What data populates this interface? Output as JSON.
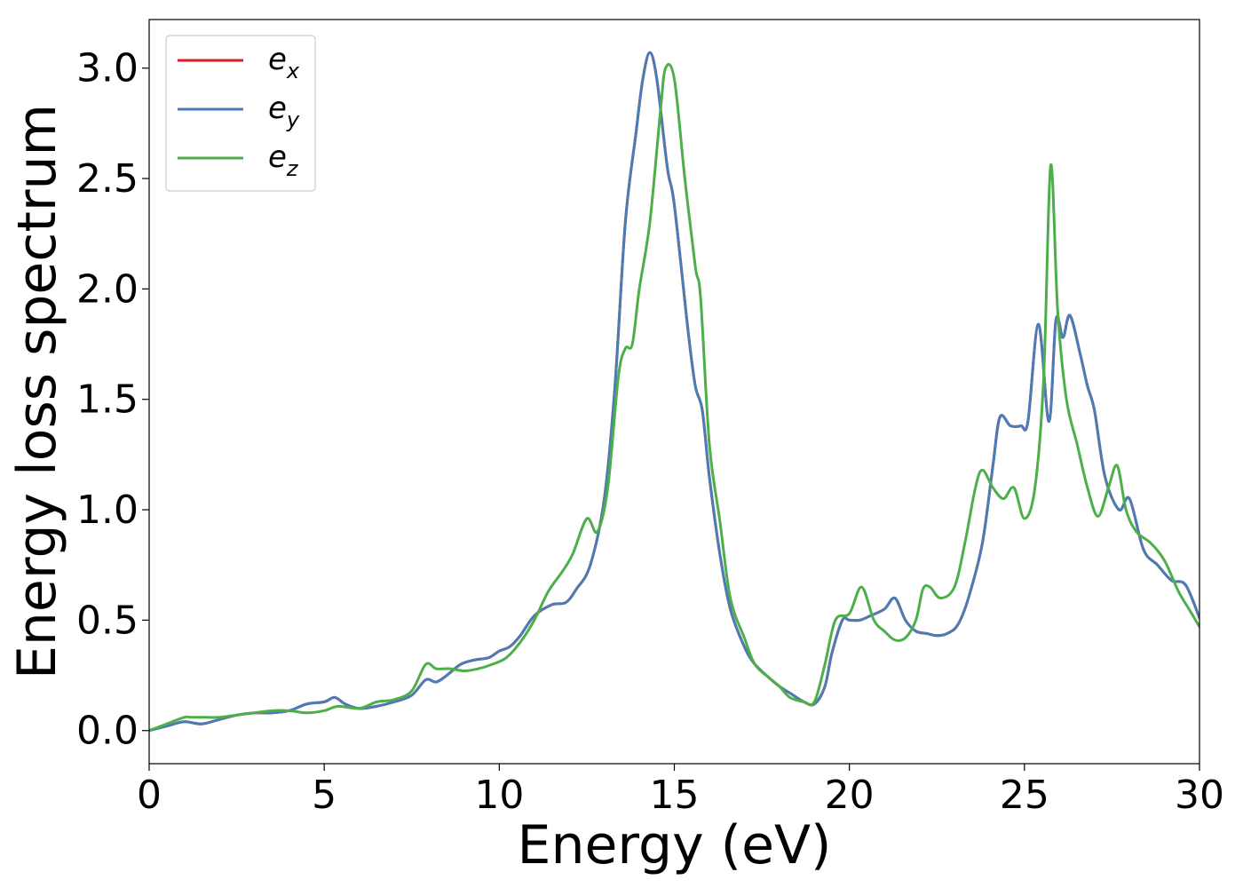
{
  "chart_data": {
    "type": "line",
    "title": "",
    "xlabel": "Energy (eV)",
    "ylabel": "Energy loss spectrum",
    "xlim": [
      0,
      30
    ],
    "ylim": [
      -0.15,
      3.22
    ],
    "xticks": [
      0,
      5,
      10,
      15,
      20,
      25,
      30
    ],
    "xtick_labels": [
      "0",
      "5",
      "10",
      "15",
      "20",
      "25",
      "30"
    ],
    "yticks": [
      0.0,
      0.5,
      1.0,
      1.5,
      2.0,
      2.5,
      3.0
    ],
    "ytick_labels": [
      "0.0",
      "0.5",
      "1.0",
      "1.5",
      "2.0",
      "2.5",
      "3.0"
    ],
    "grid": false,
    "legend_position": "top-left",
    "series": [
      {
        "name": "e",
        "subscript": "x",
        "color": "#e41a1c",
        "x": [
          0,
          0.5,
          1,
          1.5,
          2,
          2.5,
          3,
          3.5,
          4,
          4.5,
          5,
          5.3,
          5.6,
          6,
          6.5,
          7,
          7.5,
          7.9,
          8.2,
          8.5,
          8.9,
          9.3,
          9.7,
          10,
          10.3,
          10.6,
          11,
          11.5,
          11.9,
          12.2,
          12.6,
          13,
          13.3,
          13.6,
          13.9,
          14.1,
          14.3,
          14.5,
          14.8,
          15,
          15.4,
          15.6,
          15.8,
          16,
          16.3,
          16.6,
          17,
          17.3,
          17.7,
          18,
          18.3,
          18.7,
          19,
          19.3,
          19.5,
          19.8,
          20,
          20.3,
          20.6,
          21,
          21.3,
          21.6,
          21.9,
          22.2,
          22.5,
          22.8,
          23.1,
          23.4,
          23.8,
          24.1,
          24.3,
          24.6,
          24.9,
          25.1,
          25.4,
          25.7,
          25.9,
          26.1,
          26.3,
          26.6,
          26.8,
          27,
          27.3,
          27.7,
          28,
          28.4,
          28.8,
          29.2,
          29.6,
          30
        ],
        "y": [
          0,
          0.02,
          0.04,
          0.03,
          0.05,
          0.07,
          0.08,
          0.08,
          0.09,
          0.12,
          0.13,
          0.15,
          0.12,
          0.1,
          0.11,
          0.13,
          0.16,
          0.23,
          0.22,
          0.25,
          0.3,
          0.32,
          0.33,
          0.36,
          0.38,
          0.43,
          0.52,
          0.57,
          0.58,
          0.64,
          0.75,
          1.05,
          1.55,
          2.3,
          2.7,
          2.95,
          3.07,
          2.95,
          2.55,
          2.38,
          1.8,
          1.56,
          1.45,
          1.15,
          0.8,
          0.55,
          0.38,
          0.3,
          0.24,
          0.2,
          0.17,
          0.13,
          0.12,
          0.2,
          0.35,
          0.5,
          0.5,
          0.5,
          0.52,
          0.55,
          0.6,
          0.5,
          0.45,
          0.44,
          0.43,
          0.44,
          0.48,
          0.6,
          0.85,
          1.2,
          1.42,
          1.38,
          1.38,
          1.4,
          1.84,
          1.4,
          1.86,
          1.78,
          1.88,
          1.7,
          1.56,
          1.45,
          1.15,
          1,
          1.05,
          0.82,
          0.75,
          0.68,
          0.66,
          0.51
        ]
      },
      {
        "name": "e",
        "subscript": "y",
        "color": "#4a7cb5",
        "x": [
          0,
          0.5,
          1,
          1.5,
          2,
          2.5,
          3,
          3.5,
          4,
          4.5,
          5,
          5.3,
          5.6,
          6,
          6.5,
          7,
          7.5,
          7.9,
          8.2,
          8.5,
          8.9,
          9.3,
          9.7,
          10,
          10.3,
          10.6,
          11,
          11.5,
          11.9,
          12.2,
          12.6,
          13,
          13.3,
          13.6,
          13.9,
          14.1,
          14.3,
          14.5,
          14.8,
          15,
          15.4,
          15.6,
          15.8,
          16,
          16.3,
          16.6,
          17,
          17.3,
          17.7,
          18,
          18.3,
          18.7,
          19,
          19.3,
          19.5,
          19.8,
          20,
          20.3,
          20.6,
          21,
          21.3,
          21.6,
          21.9,
          22.2,
          22.5,
          22.8,
          23.1,
          23.4,
          23.8,
          24.1,
          24.3,
          24.6,
          24.9,
          25.1,
          25.4,
          25.7,
          25.9,
          26.1,
          26.3,
          26.6,
          26.8,
          27,
          27.3,
          27.7,
          28,
          28.4,
          28.8,
          29.2,
          29.6,
          30
        ],
        "y": [
          0,
          0.02,
          0.04,
          0.03,
          0.05,
          0.07,
          0.08,
          0.08,
          0.09,
          0.12,
          0.13,
          0.15,
          0.12,
          0.1,
          0.11,
          0.13,
          0.16,
          0.23,
          0.22,
          0.25,
          0.3,
          0.32,
          0.33,
          0.36,
          0.38,
          0.43,
          0.52,
          0.57,
          0.58,
          0.64,
          0.75,
          1.05,
          1.55,
          2.3,
          2.7,
          2.95,
          3.07,
          2.95,
          2.55,
          2.38,
          1.8,
          1.56,
          1.45,
          1.15,
          0.8,
          0.55,
          0.38,
          0.3,
          0.24,
          0.2,
          0.17,
          0.13,
          0.12,
          0.2,
          0.35,
          0.5,
          0.5,
          0.5,
          0.52,
          0.55,
          0.6,
          0.5,
          0.45,
          0.44,
          0.43,
          0.44,
          0.48,
          0.6,
          0.85,
          1.2,
          1.42,
          1.38,
          1.38,
          1.4,
          1.84,
          1.4,
          1.86,
          1.78,
          1.88,
          1.7,
          1.56,
          1.45,
          1.15,
          1,
          1.05,
          0.82,
          0.75,
          0.68,
          0.66,
          0.51
        ]
      },
      {
        "name": "e",
        "subscript": "z",
        "color": "#4daf4a",
        "x": [
          0,
          0.5,
          1,
          1.2,
          1.6,
          2,
          2.5,
          3,
          3.5,
          4,
          4.5,
          5,
          5.4,
          6,
          6.5,
          7,
          7.5,
          7.9,
          8.2,
          8.6,
          9,
          9.4,
          9.8,
          10.2,
          10.6,
          11,
          11.4,
          11.8,
          12.1,
          12.5,
          12.8,
          13.1,
          13.4,
          13.6,
          13.8,
          14,
          14.3,
          14.6,
          14.75,
          15,
          15.3,
          15.6,
          15.75,
          16,
          16.3,
          16.6,
          17,
          17.3,
          17.7,
          18,
          18.3,
          18.7,
          19,
          19.3,
          19.6,
          20,
          20.35,
          20.7,
          21,
          21.3,
          21.6,
          21.9,
          22.1,
          22.3,
          22.6,
          23,
          23.3,
          23.6,
          23.8,
          24.1,
          24.4,
          24.7,
          25,
          25.3,
          25.55,
          25.75,
          25.95,
          26.2,
          26.5,
          26.8,
          27.1,
          27.4,
          27.65,
          27.9,
          28.2,
          28.6,
          29,
          29.4,
          29.7,
          30
        ],
        "y": [
          0,
          0.03,
          0.06,
          0.06,
          0.06,
          0.06,
          0.07,
          0.08,
          0.09,
          0.09,
          0.08,
          0.09,
          0.11,
          0.1,
          0.13,
          0.14,
          0.18,
          0.3,
          0.28,
          0.28,
          0.27,
          0.28,
          0.3,
          0.33,
          0.4,
          0.5,
          0.63,
          0.72,
          0.8,
          0.96,
          0.9,
          1.1,
          1.6,
          1.73,
          1.75,
          2,
          2.3,
          2.8,
          3.0,
          2.95,
          2.5,
          2.1,
          1.96,
          1.3,
          0.95,
          0.6,
          0.42,
          0.3,
          0.24,
          0.2,
          0.15,
          0.13,
          0.13,
          0.3,
          0.5,
          0.53,
          0.65,
          0.5,
          0.45,
          0.41,
          0.42,
          0.5,
          0.64,
          0.65,
          0.6,
          0.65,
          0.85,
          1.1,
          1.18,
          1.1,
          1.05,
          1.1,
          0.96,
          1.1,
          1.6,
          2.56,
          1.9,
          1.5,
          1.3,
          1.1,
          0.97,
          1.1,
          1.2,
          1.0,
          0.9,
          0.85,
          0.77,
          0.63,
          0.55,
          0.47
        ]
      }
    ]
  }
}
